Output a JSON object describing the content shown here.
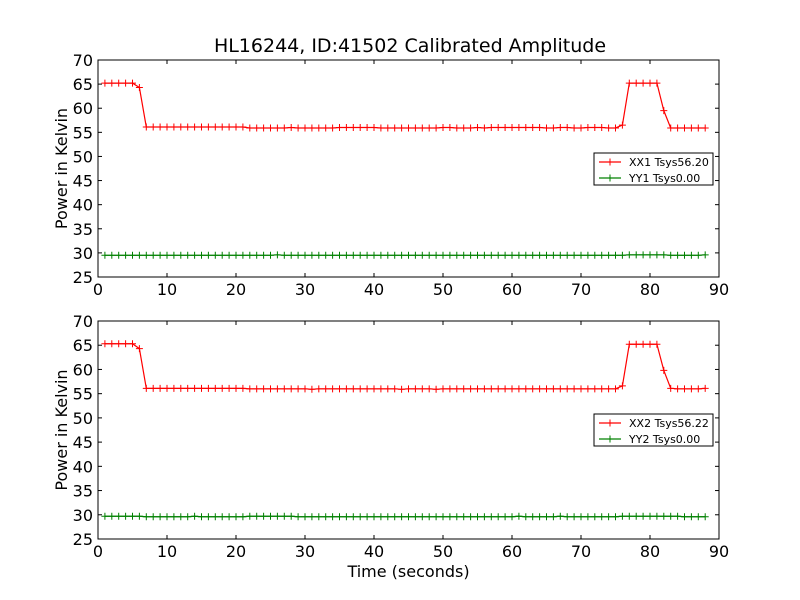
{
  "figure": {
    "title": "HL16244, ID:41502 Calibrated Amplitude"
  },
  "colors": {
    "red": "#ff0000",
    "green": "#008000"
  },
  "chart_data": [
    {
      "type": "line",
      "title": "HL16244, ID:41502 Calibrated Amplitude",
      "xlabel": "",
      "ylabel": "Power in Kelvin",
      "xlim": [
        0,
        90
      ],
      "ylim": [
        25,
        70
      ],
      "xticks": [
        "0",
        "10",
        "20",
        "30",
        "40",
        "50",
        "60",
        "70",
        "80",
        "90"
      ],
      "yticks": [
        "25",
        "30",
        "35",
        "40",
        "45",
        "50",
        "55",
        "60",
        "65",
        "70"
      ],
      "grid": false,
      "legend_position": "right",
      "x": [
        1,
        2,
        3,
        4,
        5,
        6,
        7,
        8,
        9,
        10,
        11,
        12,
        13,
        14,
        15,
        16,
        17,
        18,
        19,
        20,
        21,
        22,
        23,
        24,
        25,
        26,
        27,
        28,
        29,
        30,
        31,
        32,
        33,
        34,
        35,
        36,
        37,
        38,
        39,
        40,
        41,
        42,
        43,
        44,
        45,
        46,
        47,
        48,
        49,
        50,
        51,
        52,
        53,
        54,
        55,
        56,
        57,
        58,
        59,
        60,
        61,
        62,
        63,
        64,
        65,
        66,
        67,
        68,
        69,
        70,
        71,
        72,
        73,
        74,
        75,
        76,
        77,
        78,
        79,
        80,
        81,
        82,
        83,
        84,
        85,
        86,
        87,
        88
      ],
      "series": [
        {
          "name": "XX1 Tsys56.20",
          "color": "#ff0000",
          "values": [
            65.2,
            65.2,
            65.2,
            65.2,
            65.2,
            64.3,
            56.1,
            56.1,
            56.1,
            56.1,
            56.1,
            56.1,
            56.1,
            56.1,
            56.1,
            56.1,
            56.1,
            56.1,
            56.1,
            56.1,
            56.1,
            55.9,
            55.9,
            55.9,
            55.9,
            55.9,
            55.9,
            56.0,
            55.9,
            55.9,
            55.9,
            55.9,
            55.9,
            55.9,
            56.0,
            56.0,
            56.0,
            56.0,
            56.0,
            56.0,
            55.9,
            55.9,
            55.9,
            55.9,
            55.9,
            55.9,
            55.9,
            55.9,
            55.9,
            56.0,
            56.0,
            55.9,
            55.9,
            55.9,
            56.0,
            55.9,
            56.0,
            56.0,
            56.0,
            56.0,
            56.0,
            56.0,
            56.0,
            56.0,
            55.9,
            55.9,
            56.0,
            56.0,
            55.9,
            55.9,
            56.0,
            56.0,
            56.0,
            55.9,
            55.9,
            56.5,
            65.2,
            65.2,
            65.2,
            65.2,
            65.2,
            59.5,
            55.9,
            55.9,
            55.9,
            55.9,
            55.9,
            55.9
          ]
        },
        {
          "name": "YY1 Tsys0.00",
          "color": "#008000",
          "values": [
            29.5,
            29.5,
            29.5,
            29.5,
            29.5,
            29.5,
            29.5,
            29.5,
            29.5,
            29.5,
            29.5,
            29.5,
            29.5,
            29.5,
            29.5,
            29.5,
            29.5,
            29.5,
            29.5,
            29.5,
            29.5,
            29.5,
            29.5,
            29.5,
            29.5,
            29.6,
            29.5,
            29.5,
            29.5,
            29.5,
            29.5,
            29.5,
            29.5,
            29.5,
            29.5,
            29.5,
            29.5,
            29.5,
            29.5,
            29.5,
            29.5,
            29.5,
            29.5,
            29.5,
            29.5,
            29.5,
            29.5,
            29.5,
            29.5,
            29.5,
            29.5,
            29.5,
            29.5,
            29.5,
            29.5,
            29.5,
            29.5,
            29.5,
            29.5,
            29.5,
            29.5,
            29.5,
            29.5,
            29.5,
            29.5,
            29.5,
            29.5,
            29.5,
            29.5,
            29.5,
            29.5,
            29.5,
            29.5,
            29.5,
            29.5,
            29.5,
            29.6,
            29.6,
            29.6,
            29.6,
            29.6,
            29.6,
            29.5,
            29.5,
            29.5,
            29.5,
            29.5,
            29.6
          ]
        }
      ]
    },
    {
      "type": "line",
      "title": "",
      "xlabel": "Time (seconds)",
      "ylabel": "Power in Kelvin",
      "xlim": [
        0,
        90
      ],
      "ylim": [
        25,
        70
      ],
      "xticks": [
        "0",
        "10",
        "20",
        "30",
        "40",
        "50",
        "60",
        "70",
        "80",
        "90"
      ],
      "yticks": [
        "25",
        "30",
        "35",
        "40",
        "45",
        "50",
        "55",
        "60",
        "65",
        "70"
      ],
      "grid": false,
      "legend_position": "right",
      "x": [
        1,
        2,
        3,
        4,
        5,
        6,
        7,
        8,
        9,
        10,
        11,
        12,
        13,
        14,
        15,
        16,
        17,
        18,
        19,
        20,
        21,
        22,
        23,
        24,
        25,
        26,
        27,
        28,
        29,
        30,
        31,
        32,
        33,
        34,
        35,
        36,
        37,
        38,
        39,
        40,
        41,
        42,
        43,
        44,
        45,
        46,
        47,
        48,
        49,
        50,
        51,
        52,
        53,
        54,
        55,
        56,
        57,
        58,
        59,
        60,
        61,
        62,
        63,
        64,
        65,
        66,
        67,
        68,
        69,
        70,
        71,
        72,
        73,
        74,
        75,
        76,
        77,
        78,
        79,
        80,
        81,
        82,
        83,
        84,
        85,
        86,
        87,
        88
      ],
      "series": [
        {
          "name": "XX2 Tsys56.22",
          "color": "#ff0000",
          "values": [
            65.3,
            65.3,
            65.3,
            65.3,
            65.3,
            64.3,
            56.1,
            56.1,
            56.1,
            56.1,
            56.1,
            56.1,
            56.1,
            56.1,
            56.1,
            56.1,
            56.1,
            56.1,
            56.1,
            56.1,
            56.1,
            56.0,
            56.0,
            56.0,
            56.0,
            56.0,
            56.0,
            56.0,
            56.0,
            56.0,
            55.9,
            56.0,
            56.0,
            56.0,
            56.0,
            56.0,
            56.0,
            56.0,
            56.0,
            56.0,
            56.0,
            56.0,
            56.0,
            55.9,
            56.0,
            56.0,
            56.0,
            56.0,
            55.9,
            56.0,
            56.0,
            56.0,
            56.0,
            56.0,
            56.0,
            56.0,
            56.0,
            56.0,
            56.0,
            56.0,
            56.0,
            56.0,
            56.0,
            56.0,
            56.0,
            56.0,
            56.0,
            56.0,
            56.0,
            56.0,
            56.0,
            56.0,
            56.0,
            56.0,
            56.0,
            56.6,
            65.2,
            65.2,
            65.2,
            65.2,
            65.2,
            59.8,
            56.1,
            56.0,
            56.0,
            56.0,
            56.0,
            56.1
          ]
        },
        {
          "name": "YY2 Tsys0.00",
          "color": "#008000",
          "values": [
            29.7,
            29.7,
            29.7,
            29.7,
            29.7,
            29.7,
            29.6,
            29.6,
            29.6,
            29.6,
            29.6,
            29.6,
            29.6,
            29.7,
            29.6,
            29.6,
            29.6,
            29.6,
            29.6,
            29.6,
            29.6,
            29.7,
            29.7,
            29.7,
            29.7,
            29.7,
            29.7,
            29.7,
            29.6,
            29.6,
            29.6,
            29.6,
            29.6,
            29.6,
            29.6,
            29.6,
            29.6,
            29.6,
            29.6,
            29.6,
            29.6,
            29.6,
            29.6,
            29.6,
            29.6,
            29.6,
            29.6,
            29.6,
            29.6,
            29.6,
            29.6,
            29.6,
            29.6,
            29.6,
            29.6,
            29.6,
            29.6,
            29.6,
            29.6,
            29.6,
            29.7,
            29.6,
            29.6,
            29.6,
            29.6,
            29.6,
            29.7,
            29.6,
            29.6,
            29.6,
            29.6,
            29.6,
            29.6,
            29.6,
            29.6,
            29.7,
            29.7,
            29.7,
            29.7,
            29.7,
            29.7,
            29.7,
            29.7,
            29.7,
            29.6,
            29.6,
            29.6,
            29.6
          ]
        }
      ]
    }
  ]
}
